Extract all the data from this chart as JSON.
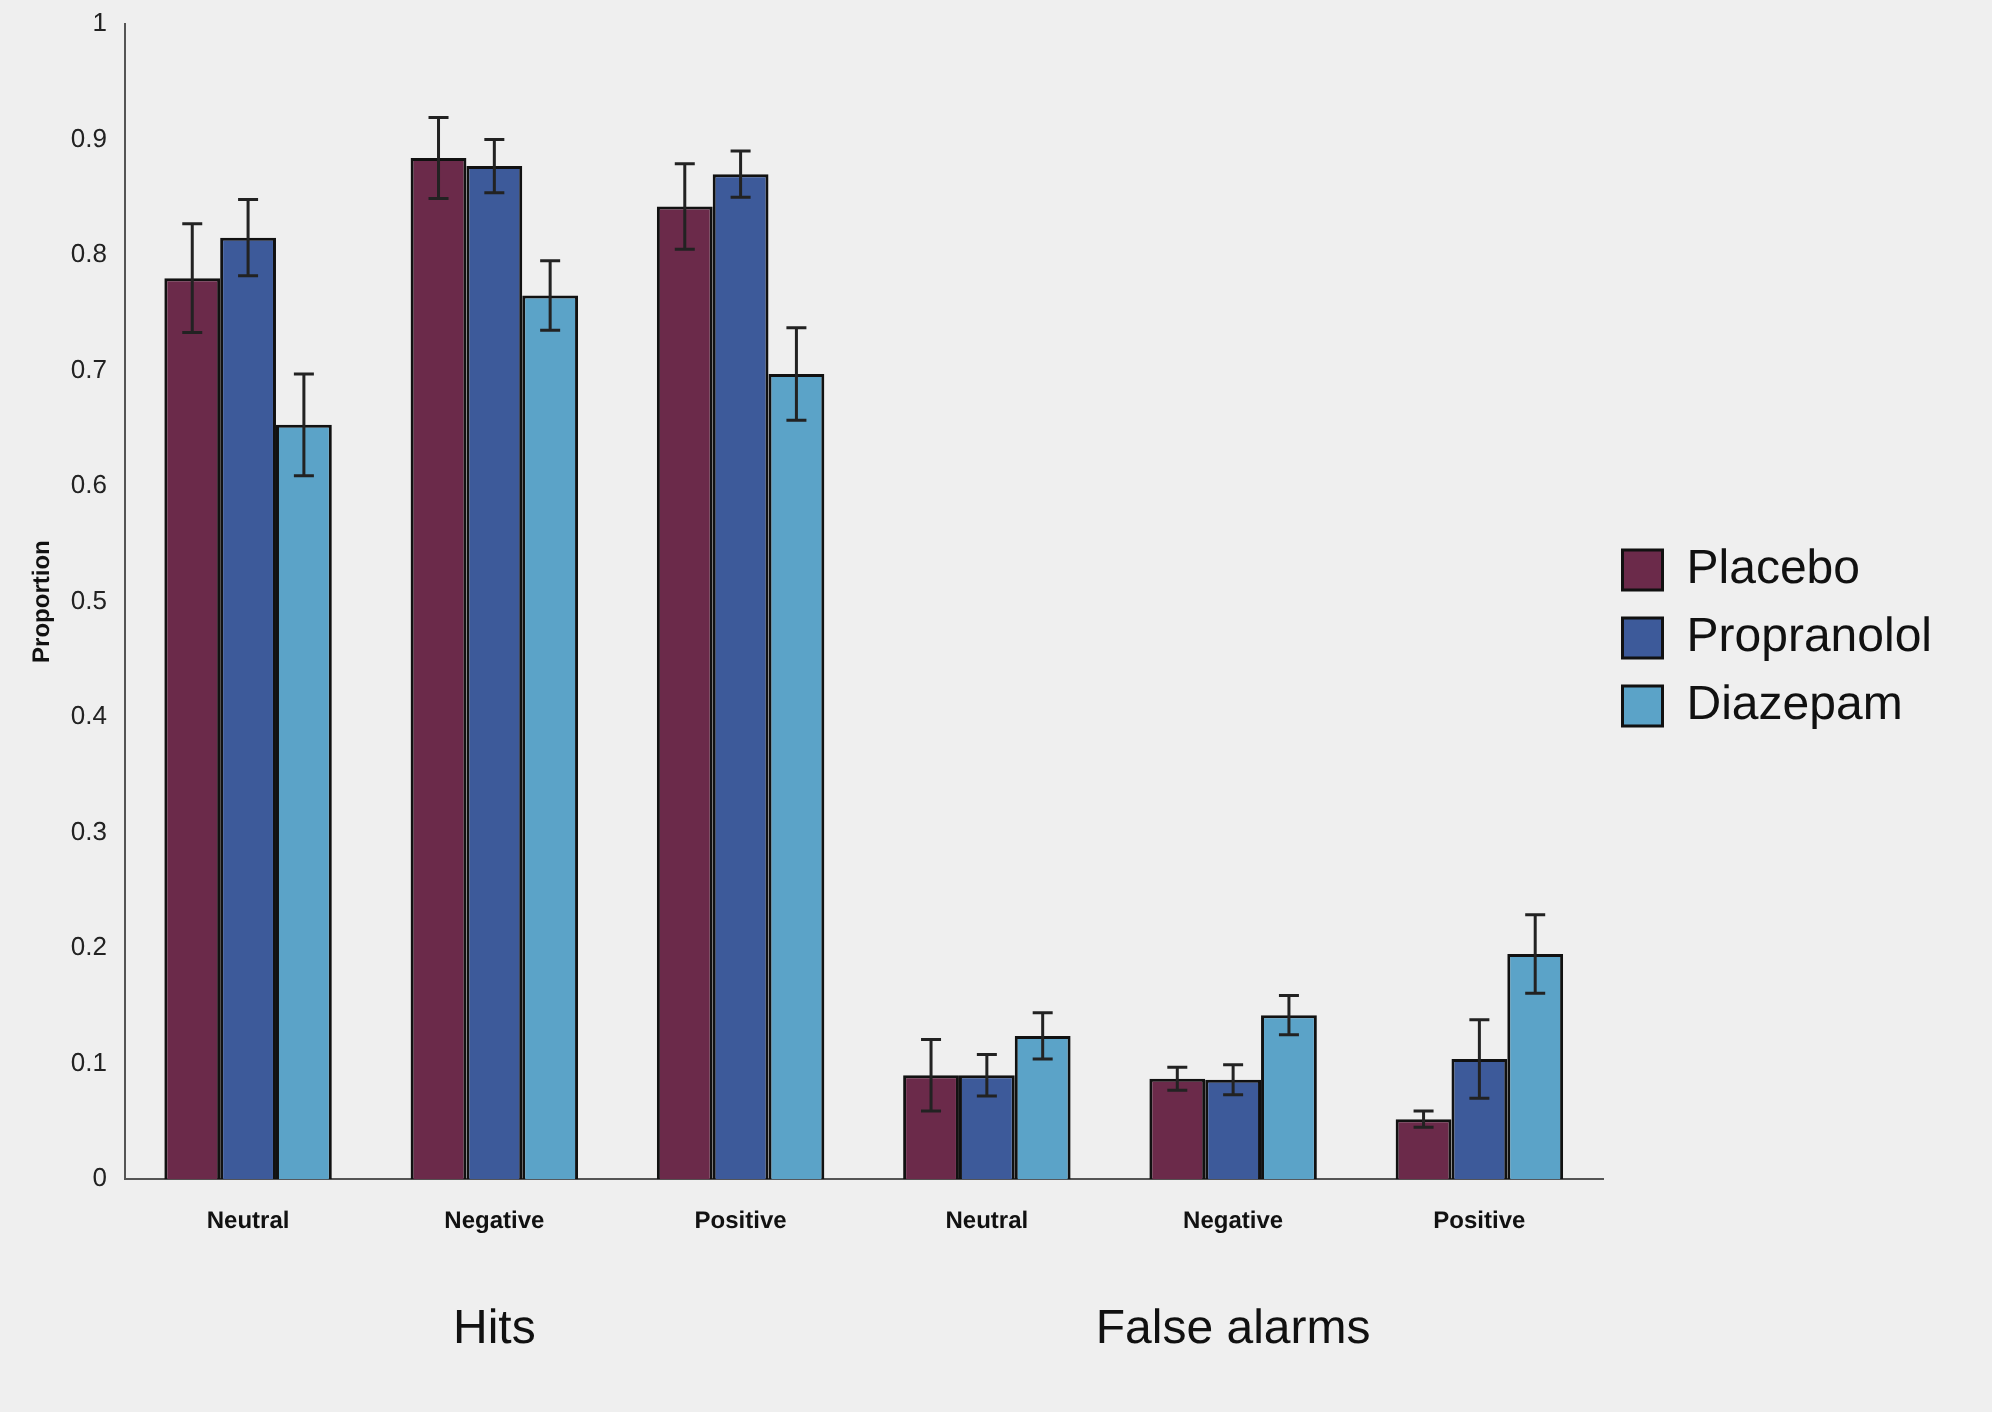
{
  "chart_data": {
    "type": "bar",
    "ylabel": "Proportion",
    "categories": [
      "Neutral",
      "Negative",
      "Positive",
      "Neutral",
      "Negative",
      "Positive"
    ],
    "series": [
      {
        "name": "Placebo",
        "color": "#6b2a4a",
        "values": [
          0.78,
          0.884,
          0.842,
          0.09,
          0.087,
          0.052
        ],
        "errors": [
          0.047,
          0.035,
          0.037,
          0.031,
          0.01,
          0.007
        ]
      },
      {
        "name": "Propranolol",
        "color": "#3d5a9a",
        "values": [
          0.815,
          0.877,
          0.87,
          0.09,
          0.086,
          0.104
        ],
        "errors": [
          0.033,
          0.023,
          0.02,
          0.018,
          0.013,
          0.034
        ]
      },
      {
        "name": "Diazepam",
        "color": "#5ba3c8",
        "values": [
          0.653,
          0.765,
          0.697,
          0.124,
          0.142,
          0.195
        ],
        "errors": [
          0.044,
          0.03,
          0.04,
          0.02,
          0.017,
          0.034
        ]
      }
    ],
    "ylim": [
      0,
      1
    ],
    "yticks": [
      0,
      0.1,
      0.2,
      0.3,
      0.4,
      0.5,
      0.6,
      0.7,
      0.8,
      0.9,
      1
    ],
    "grid": false,
    "legend": "right",
    "annotations": [
      "Hits",
      "False alarms"
    ]
  }
}
